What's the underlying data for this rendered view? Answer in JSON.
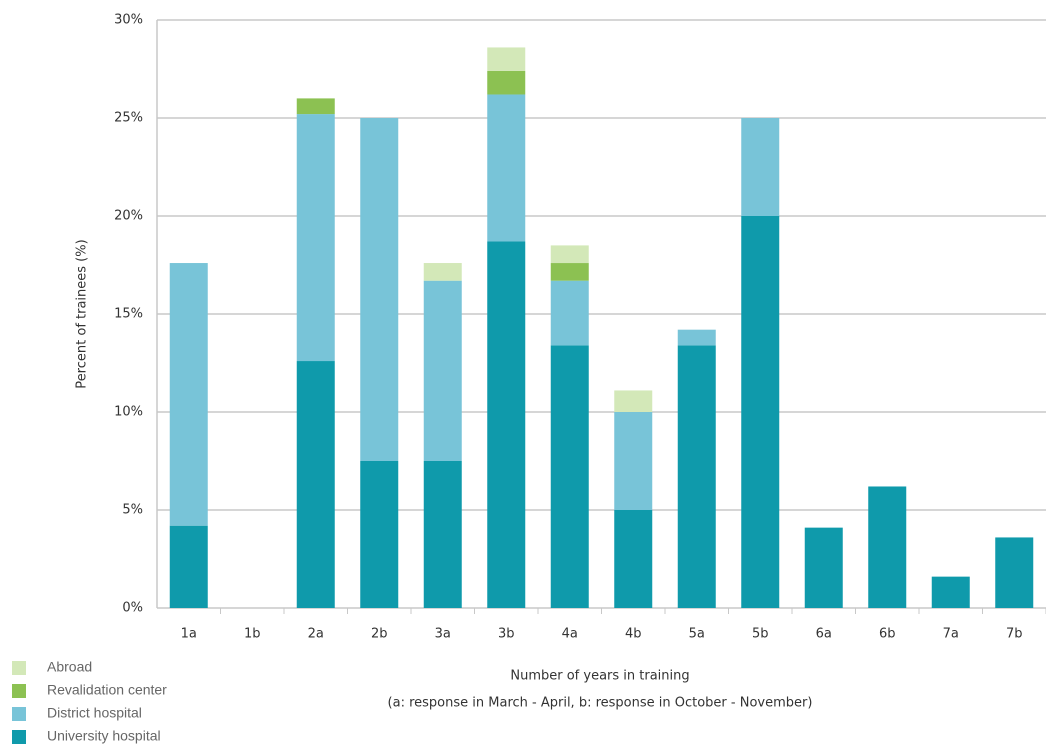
{
  "chart_data": {
    "type": "bar",
    "stacked": true,
    "ylabel": "Percent of trainees (%)",
    "xlabel": [
      "Number of years in training",
      "(a: response in March - April, b: response in October - November)"
    ],
    "categories": [
      "1a",
      "1b",
      "2a",
      "2b",
      "3a",
      "3b",
      "4a",
      "4b",
      "5a",
      "5b",
      "6a",
      "6b",
      "7a",
      "7b"
    ],
    "series": [
      {
        "name": "University hospital",
        "color": "#0f9aab",
        "values": [
          4.2,
          0,
          12.6,
          7.5,
          7.5,
          18.7,
          13.4,
          5.0,
          13.4,
          20,
          4.1,
          6.2,
          1.6,
          3.6
        ]
      },
      {
        "name": "District hospital",
        "color": "#78c4d8",
        "values": [
          13.4,
          0,
          12.6,
          17.5,
          9.2,
          7.5,
          3.3,
          5.0,
          0.8,
          5,
          0,
          0,
          0,
          0
        ]
      },
      {
        "name": "Revalidation center",
        "color": "#8cc152",
        "values": [
          0,
          0,
          0.8,
          0,
          0,
          1.2,
          0.9,
          0,
          0,
          0,
          0,
          0,
          0,
          0
        ]
      },
      {
        "name": "Abroad",
        "color": "#d3e8b8",
        "values": [
          0,
          0,
          0,
          0,
          0.9,
          1.2,
          0.9,
          1.1,
          0,
          0,
          0,
          0,
          0,
          0
        ]
      }
    ],
    "ylim": [
      0,
      30
    ],
    "yticks": [
      {
        "value": 0,
        "label": "0%"
      },
      {
        "value": 5,
        "label": "5%"
      },
      {
        "value": 10,
        "label": "10%"
      },
      {
        "value": 15,
        "label": "15%"
      },
      {
        "value": 20,
        "label": "20%"
      },
      {
        "value": 25,
        "label": "25%"
      },
      {
        "value": 30,
        "label": "30%"
      }
    ],
    "grid": true,
    "legend": "bottom-left"
  }
}
